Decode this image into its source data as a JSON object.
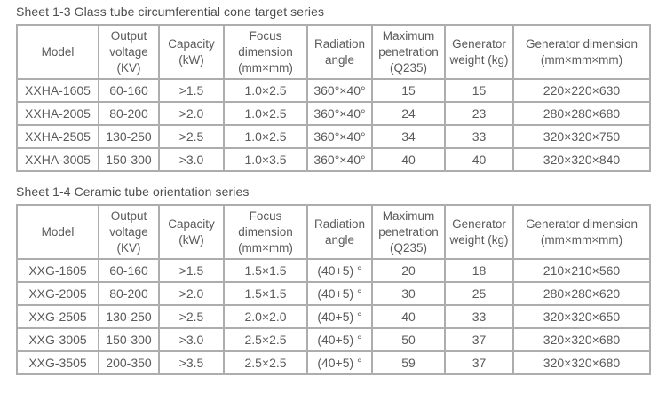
{
  "colors": {
    "background": "#ffffff",
    "table_border": "#adadad",
    "table_text": "#5a5a5a",
    "title_text": "#4d4d4d"
  },
  "tables": [
    {
      "title": "Sheet 1-3 Glass tube circumferential cone target series",
      "headers": [
        "Model",
        "Output voltage (KV)",
        "Capacity (kW)",
        "Focus dimension (mm×mm)",
        "Radiation angle",
        "Maximum penetration (Q235)",
        "Generator weight (kg)",
        "Generator dimension (mm×mm×mm)"
      ],
      "rows": [
        [
          "XXHA-1605",
          "60-160",
          ">1.5",
          "1.0×2.5",
          "360°×40°",
          "15",
          "15",
          "220×220×630"
        ],
        [
          "XXHA-2005",
          "80-200",
          ">2.0",
          "1.0×2.5",
          "360°×40°",
          "24",
          "23",
          "280×280×680"
        ],
        [
          "XXHA-2505",
          "130-250",
          ">2.5",
          "1.0×2.5",
          "360°×40°",
          "34",
          "33",
          "320×320×750"
        ],
        [
          "XXHA-3005",
          "150-300",
          ">3.0",
          "1.0×3.5",
          "360°×40°",
          "40",
          "40",
          "320×320×840"
        ]
      ]
    },
    {
      "title": "Sheet 1-4 Ceramic tube orientation series",
      "headers": [
        "Model",
        "Output voltage (KV)",
        "Capacity (kW)",
        "Focus dimension (mm×mm)",
        "Radiation angle",
        "Maximum penetration (Q235)",
        "Generator weight (kg)",
        "Generator dimension (mm×mm×mm)"
      ],
      "rows": [
        [
          "XXG-1605",
          "60-160",
          ">1.5",
          "1.5×1.5",
          "(40+5) °",
          "20",
          "18",
          "210×210×560"
        ],
        [
          "XXG-2005",
          "80-200",
          ">2.0",
          "1.5×1.5",
          "(40+5) °",
          "30",
          "25",
          "280×280×620"
        ],
        [
          "XXG-2505",
          "130-250",
          ">2.5",
          "2.0×2.0",
          "(40+5) °",
          "40",
          "33",
          "320×320×650"
        ],
        [
          "XXG-3005",
          "150-300",
          ">3.0",
          "2.5×2.5",
          "(40+5) °",
          "50",
          "37",
          "320×320×680"
        ],
        [
          "XXG-3505",
          "200-350",
          ">3.5",
          "2.5×2.5",
          "(40+5) °",
          "59",
          "37",
          "320×320×680"
        ]
      ]
    }
  ]
}
